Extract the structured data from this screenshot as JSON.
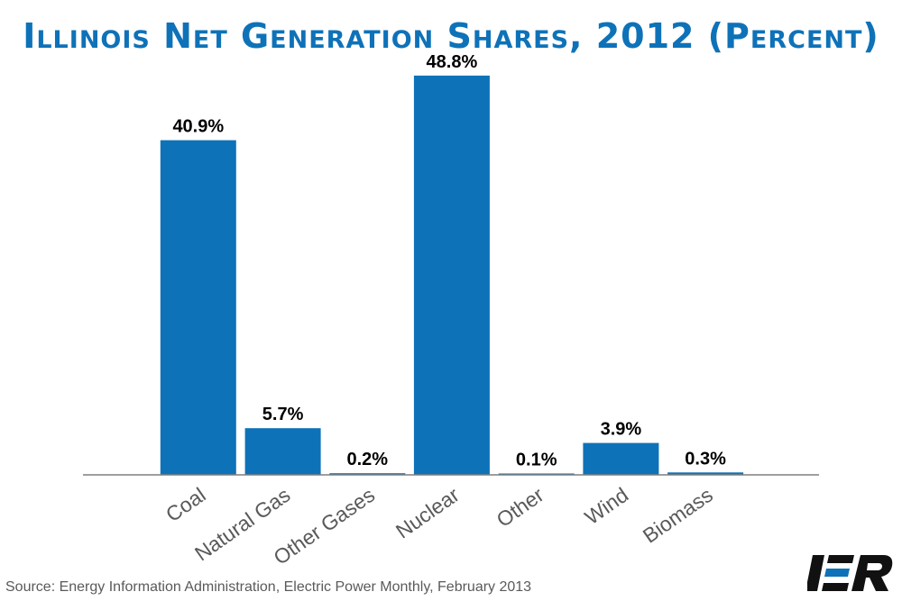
{
  "title": "Illinois Net Generation Shares, 2012 (Percent)",
  "source": "Source: Energy Information Administration, Electric Power Monthly, February 2013",
  "logo_text": "IER",
  "colors": {
    "bar": "#0e72b8",
    "title": "#0e72b8",
    "axis": "#7f7f7f",
    "label": "#000000",
    "tick": "#595959"
  },
  "chart_data": {
    "type": "bar",
    "categories": [
      "Coal",
      "Natural Gas",
      "Other Gases",
      "Nuclear",
      "Other",
      "Wind",
      "Biomass"
    ],
    "values": [
      40.9,
      5.7,
      0.2,
      48.8,
      0.1,
      3.9,
      0.3
    ],
    "data_labels": [
      "40.9%",
      "5.7%",
      "0.2%",
      "48.8%",
      "0.1%",
      "3.9%",
      "0.3%"
    ],
    "title": "Illinois Net Generation Shares, 2012 (Percent)",
    "xlabel": "",
    "ylabel": "",
    "ylim": [
      0,
      50
    ],
    "grid": false,
    "legend": "none"
  }
}
